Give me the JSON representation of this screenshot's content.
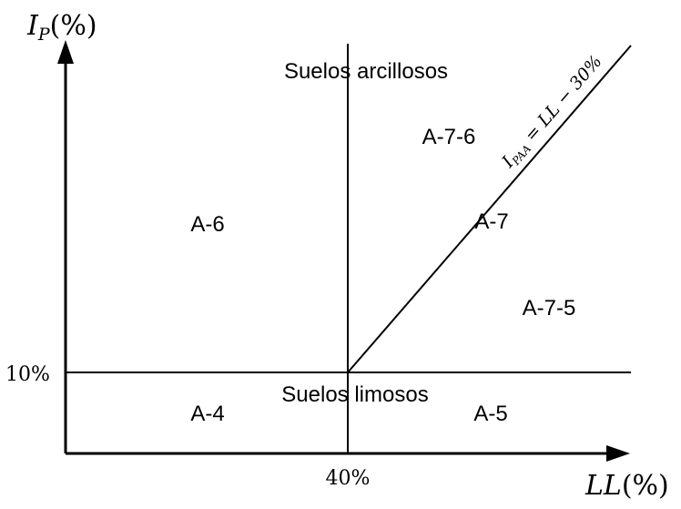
{
  "axes": {
    "y": {
      "symbol": "I",
      "subscript": "P",
      "unit": "(%)"
    },
    "x": {
      "symbol": "LL",
      "unit": "(%)"
    },
    "y_tick": "10%",
    "x_tick": "40%"
  },
  "regions": {
    "clay_soils": "Suelos arcillosos",
    "silt_soils": "Suelos limosos",
    "a6": "A-6",
    "a4": "A-4",
    "a5": "A-5",
    "a7": "A-7",
    "a76": "A-7-6",
    "a75": "A-7-5"
  },
  "line_label": {
    "symbol": "I",
    "subscript": "PAA",
    "equation": " = LL − 30%"
  }
}
